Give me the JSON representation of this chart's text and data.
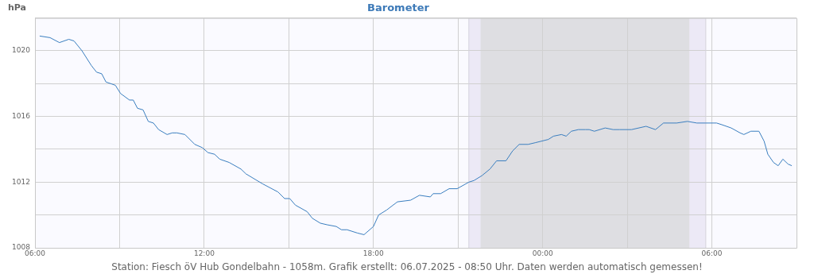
{
  "chart_data": {
    "type": "line",
    "title": "Barometer",
    "ylabel": "hPa",
    "annotations": [
      "Station: Fiesch öV Hub Gondelbahn - 1058m. Grafik erstellt: 06.07.2025 - 08:50 Uhr. Daten werden automatisch gemessen!"
    ],
    "series": [
      {
        "color": "#3a7ebf",
        "x": [
          "2025-07-05T06:10",
          "2025-07-05T06:32",
          "2025-07-05T06:52",
          "2025-07-05T07:12",
          "2025-07-05T07:23",
          "2025-07-05T07:40",
          "2025-07-05T08:00",
          "2025-07-05T08:11",
          "2025-07-05T08:22",
          "2025-07-05T08:31",
          "2025-07-05T08:51",
          "2025-07-05T09:02",
          "2025-07-05T09:21",
          "2025-07-05T09:29",
          "2025-07-05T09:38",
          "2025-07-05T09:50",
          "2025-07-05T10:01",
          "2025-07-05T10:12",
          "2025-07-05T10:23",
          "2025-07-05T10:41",
          "2025-07-05T10:52",
          "2025-07-05T11:02",
          "2025-07-05T11:19",
          "2025-07-05T11:40",
          "2025-07-05T11:56",
          "2025-07-05T12:08",
          "2025-07-05T12:22",
          "2025-07-05T12:33",
          "2025-07-05T12:53",
          "2025-07-05T13:18",
          "2025-07-05T13:29",
          "2025-07-05T14:04",
          "2025-07-05T14:37",
          "2025-07-05T14:51",
          "2025-07-05T15:02",
          "2025-07-05T15:14",
          "2025-07-05T15:39",
          "2025-07-05T15:50",
          "2025-07-05T16:07",
          "2025-07-05T16:22",
          "2025-07-05T16:41",
          "2025-07-05T16:52",
          "2025-07-05T17:04",
          "2025-07-05T17:26",
          "2025-07-05T17:40",
          "2025-07-05T18:00",
          "2025-07-05T18:11",
          "2025-07-05T18:28",
          "2025-07-05T18:51",
          "2025-07-05T19:19",
          "2025-07-05T19:38",
          "2025-07-05T20:01",
          "2025-07-05T20:07",
          "2025-07-05T20:23",
          "2025-07-05T20:41",
          "2025-07-05T20:58",
          "2025-07-05T21:23",
          "2025-07-05T21:34",
          "2025-07-05T21:51",
          "2025-07-05T22:08",
          "2025-07-05T22:22",
          "2025-07-05T22:42",
          "2025-07-05T22:56",
          "2025-07-05T23:10",
          "2025-07-05T23:29",
          "2025-07-05T23:44",
          "2025-07-06T00:12",
          "2025-07-06T00:23",
          "2025-07-06T00:40",
          "2025-07-06T00:50",
          "2025-07-06T01:01",
          "2025-07-06T01:16",
          "2025-07-06T01:31",
          "2025-07-06T01:39",
          "2025-07-06T01:50",
          "2025-07-06T02:13",
          "2025-07-06T02:30",
          "2025-07-06T02:44",
          "2025-07-06T03:09",
          "2025-07-06T03:40",
          "2025-07-06T04:00",
          "2025-07-06T04:17",
          "2025-07-06T04:45",
          "2025-07-06T05:08",
          "2025-07-06T05:28",
          "2025-07-06T05:47",
          "2025-07-06T06:10",
          "2025-07-06T06:21",
          "2025-07-06T06:41",
          "2025-07-06T07:00",
          "2025-07-06T07:08",
          "2025-07-06T07:23",
          "2025-07-06T07:40",
          "2025-07-06T07:51",
          "2025-07-06T07:59",
          "2025-07-06T08:11",
          "2025-07-06T08:21",
          "2025-07-06T08:31",
          "2025-07-06T08:42",
          "2025-07-06T08:50"
        ],
        "values": [
          1020.9,
          1020.8,
          1020.5,
          1020.7,
          1020.6,
          1020.0,
          1019.1,
          1018.7,
          1018.6,
          1018.1,
          1017.9,
          1017.4,
          1017.0,
          1017.0,
          1016.5,
          1016.4,
          1015.7,
          1015.6,
          1015.2,
          1014.9,
          1015.0,
          1015.0,
          1014.9,
          1014.3,
          1014.1,
          1013.8,
          1013.7,
          1013.4,
          1013.2,
          1012.8,
          1012.5,
          1011.9,
          1011.4,
          1011.0,
          1011.0,
          1010.6,
          1010.2,
          1009.8,
          1009.5,
          1009.4,
          1009.3,
          1009.1,
          1009.1,
          1008.9,
          1008.8,
          1009.3,
          1010.0,
          1010.3,
          1010.8,
          1010.9,
          1011.2,
          1011.1,
          1011.3,
          1011.3,
          1011.6,
          1011.6,
          1012.0,
          1012.1,
          1012.4,
          1012.8,
          1013.3,
          1013.3,
          1013.9,
          1014.3,
          1014.3,
          1014.4,
          1014.6,
          1014.8,
          1014.9,
          1014.8,
          1015.1,
          1015.2,
          1015.2,
          1015.2,
          1015.1,
          1015.3,
          1015.2,
          1015.2,
          1015.2,
          1015.4,
          1015.2,
          1015.6,
          1015.6,
          1015.7,
          1015.6,
          1015.6,
          1015.6,
          1015.5,
          1015.3,
          1015.0,
          1014.9,
          1015.1,
          1015.1,
          1014.5,
          1013.7,
          1013.2,
          1013.0,
          1013.4,
          1013.1,
          1013.0
        ]
      }
    ],
    "xlim": [
      "2025-07-05T06:00",
      "2025-07-06T09:00"
    ],
    "xticks": [
      {
        "value": "2025-07-05T06:00",
        "label": "06:00"
      },
      {
        "value": "2025-07-05T09:00",
        "label": null
      },
      {
        "value": "2025-07-05T12:00",
        "label": "12:00"
      },
      {
        "value": "2025-07-05T15:00",
        "label": null
      },
      {
        "value": "2025-07-05T18:00",
        "label": "18:00"
      },
      {
        "value": "2025-07-05T21:00",
        "label": null
      },
      {
        "value": "2025-07-06T00:00",
        "label": "00:00"
      },
      {
        "value": "2025-07-06T03:00",
        "label": null
      },
      {
        "value": "2025-07-06T06:00",
        "label": "06:00"
      }
    ],
    "ylim": [
      1008,
      1022
    ],
    "yticks": [
      1008,
      {
        "value": 1010,
        "label": null
      },
      1012,
      {
        "value": 1014,
        "label": null
      },
      1016,
      {
        "value": 1018,
        "label": null
      },
      1020,
      {
        "value": 1022,
        "label": null
      }
    ],
    "bands": [
      {
        "axis": "x",
        "from": "2025-07-05T21:23",
        "to": "2025-07-06T05:47",
        "color": "#ece9f6"
      },
      {
        "axis": "x",
        "from": "2025-07-05T21:48",
        "to": "2025-07-06T05:12",
        "color": "#dedee2"
      }
    ],
    "ref_lines": [
      {
        "axis": "x",
        "value": "2025-07-05T21:23",
        "color": "#d4d2dc"
      },
      {
        "axis": "x",
        "value": "2025-07-06T05:47",
        "color": "#d4d2dc"
      }
    ],
    "grid": true,
    "legend": false,
    "marker": "none",
    "line_style": "solid"
  }
}
